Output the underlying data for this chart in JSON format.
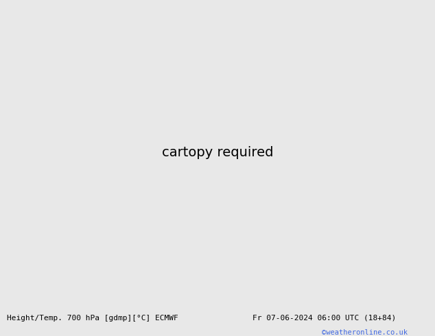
{
  "title_left": "Height/Temp. 700 hPa [gdmp][°C] ECMWF",
  "title_right": "Fr 07-06-2024 06:00 UTC (18+84)",
  "watermark": "©weatheronline.co.uk",
  "bg_color": "#e8e8e8",
  "land_color": "#c8f0b0",
  "border_color": "#888888",
  "fig_width": 6.34,
  "fig_height": 4.9,
  "dpi": 100,
  "lon_min": -110,
  "lon_max": 10,
  "lat_min": -60,
  "lat_max": 20
}
